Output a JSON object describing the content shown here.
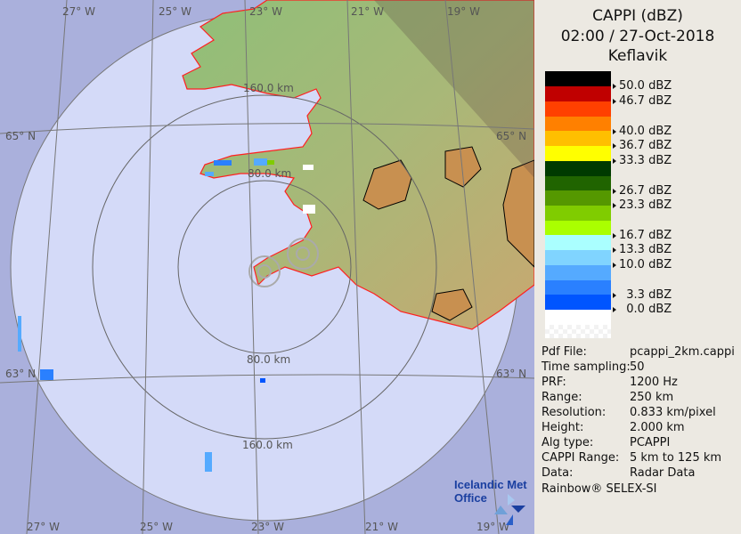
{
  "header": {
    "title": "CAPPI (dBZ)",
    "datetime": "02:00 / 27-Oct-2018",
    "station": "Keflavik"
  },
  "legend": [
    {
      "color": "#000000",
      "label": "50.0 dBZ"
    },
    {
      "color": "#c00000",
      "label": "46.7 dBZ"
    },
    {
      "color": "#ff4000",
      "label": ""
    },
    {
      "color": "#ff8000",
      "label": "40.0 dBZ"
    },
    {
      "color": "#ffbf00",
      "label": "36.7 dBZ"
    },
    {
      "color": "#ffff00",
      "label": "33.3 dBZ"
    },
    {
      "color": "#003a00",
      "label": ""
    },
    {
      "color": "#206400",
      "label": "26.7 dBZ"
    },
    {
      "color": "#559800",
      "label": "23.3 dBZ"
    },
    {
      "color": "#80cc00",
      "label": ""
    },
    {
      "color": "#aaff00",
      "label": "16.7 dBZ"
    },
    {
      "color": "#aaffff",
      "label": "13.3 dBZ"
    },
    {
      "color": "#80d4ff",
      "label": "10.0 dBZ"
    },
    {
      "color": "#55aaff",
      "label": ""
    },
    {
      "color": "#2a80ff",
      "label": "  3.3 dBZ"
    },
    {
      "color": "#0055ff",
      "label": "  0.0 dBZ"
    },
    {
      "color": "#ffffff",
      "label": ""
    }
  ],
  "info": [
    {
      "key": "Pdf File:",
      "value": "pcappi_2km.cappi"
    },
    {
      "key": "Time sampling:",
      "value": "50"
    },
    {
      "key": "PRF:",
      "value": "1200 Hz"
    },
    {
      "key": "Range:",
      "value": "250 km"
    },
    {
      "key": "Resolution:",
      "value": "0.833 km/pixel"
    },
    {
      "key": "Height:",
      "value": "2.000 km"
    },
    {
      "key": "Alg type:",
      "value": "PCAPPI"
    },
    {
      "key": "CAPPI Range:",
      "value": "5 km to 125 km"
    },
    {
      "key": "Data:",
      "value": "Radar Data"
    }
  ],
  "footer": "Rainbow® SELEX-SI",
  "logo": {
    "line1": "Icelandic Met",
    "line2": "Office"
  },
  "map": {
    "lon_labels_top": [
      "27° W",
      "25° W",
      "23° W",
      "21° W",
      "19° W"
    ],
    "lon_labels_bottom": [
      "27° W",
      "25° W",
      "23° W",
      "21° W",
      "19° W"
    ],
    "lat_labels_left": [
      "65° N",
      "63° N"
    ],
    "lat_labels_right": [
      "65° N",
      "63° N"
    ],
    "range_labels": [
      "160.0 km",
      "80.0 km",
      "80.0 km",
      "160.0 km"
    ],
    "colors": {
      "ocean_outside": "#aab0dc",
      "ocean_inside": "#d4daf8",
      "coast": "#ff2020"
    }
  }
}
